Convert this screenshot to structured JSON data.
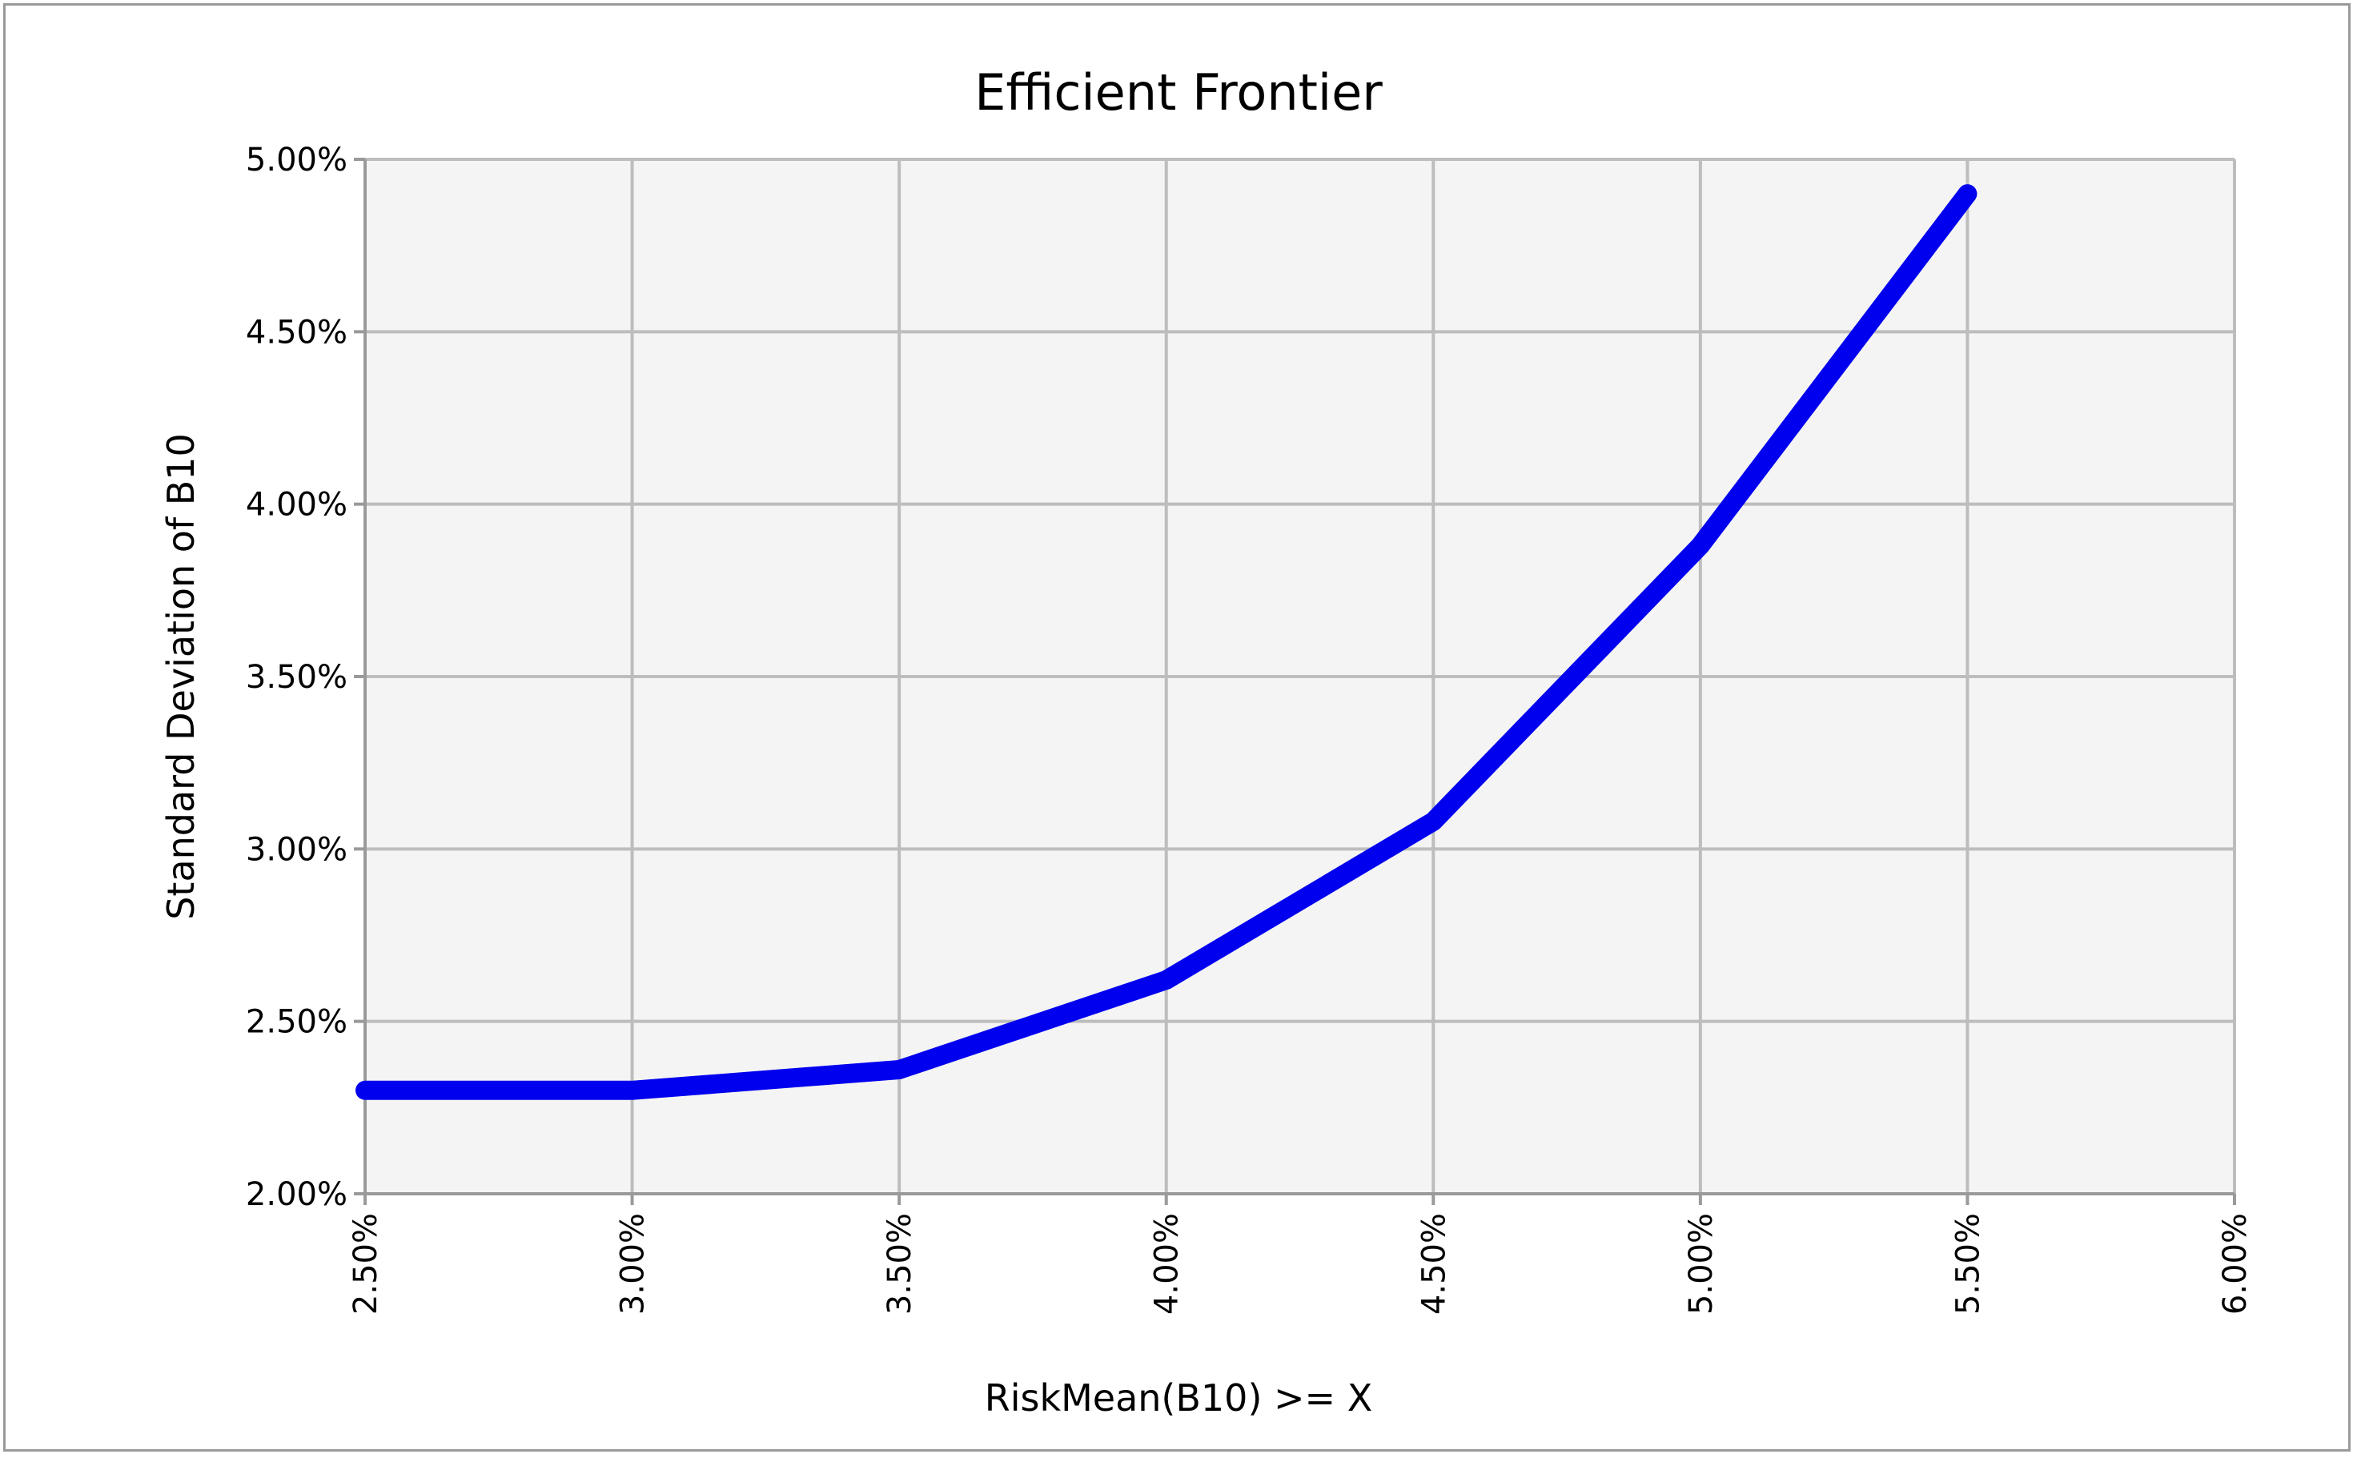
{
  "chart_data": {
    "type": "line",
    "title": "Efficient Frontier",
    "xlabel": "RiskMean(B10) >= X",
    "ylabel": "Standard Deviation of B10",
    "xlim": [
      0.025,
      0.06
    ],
    "ylim": [
      0.02,
      0.05
    ],
    "x_ticks": [
      "2.50%",
      "3.00%",
      "3.50%",
      "4.00%",
      "4.50%",
      "5.00%",
      "5.50%",
      "6.00%"
    ],
    "y_ticks": [
      "2.00%",
      "2.50%",
      "3.00%",
      "3.50%",
      "4.00%",
      "4.50%",
      "5.00%"
    ],
    "grid": true,
    "legend": "none",
    "series": [
      {
        "color": "#0000ee",
        "x": [
          0.025,
          0.03,
          0.035,
          0.04,
          0.045,
          0.05,
          0.055
        ],
        "y": [
          0.023,
          0.023,
          0.0236,
          0.0262,
          0.0308,
          0.0388,
          0.049
        ]
      }
    ],
    "plot_background": "#f4f4f4",
    "grid_color": "#bdbdbd"
  }
}
